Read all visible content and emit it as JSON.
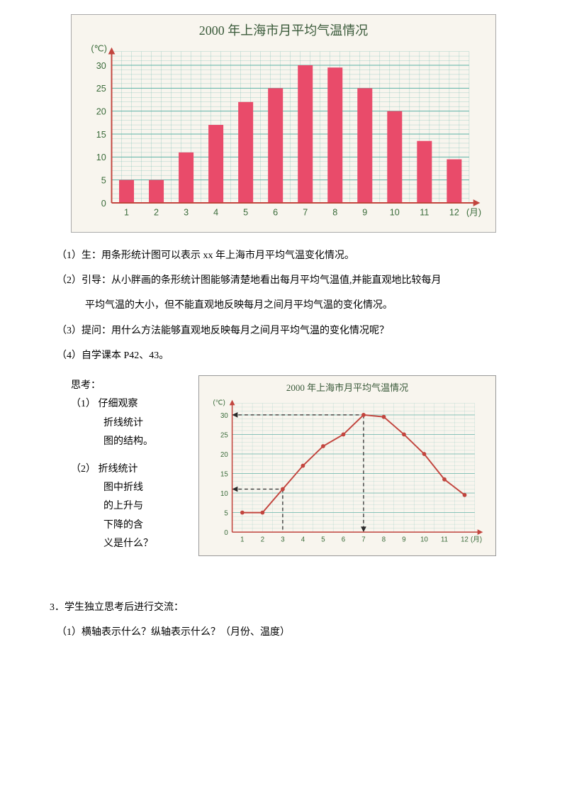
{
  "barChart": {
    "type": "bar",
    "title": "2000 年上海市月平均气温情况",
    "x_unit": "(月)",
    "y_unit": "(℃)",
    "categories": [
      "1",
      "2",
      "3",
      "4",
      "5",
      "6",
      "7",
      "8",
      "9",
      "10",
      "11",
      "12"
    ],
    "values": [
      5,
      5,
      11,
      17,
      22,
      25,
      30,
      29.5,
      25,
      20,
      13.5,
      9.5
    ],
    "ylim": [
      0,
      33
    ],
    "yticks": [
      0,
      5,
      10,
      15,
      20,
      25,
      30
    ],
    "grid_step": 5,
    "bar_color": "#e94b6a",
    "grid_color": "#5db3a6",
    "axis_color": "#c2453e",
    "tick_label_color": "#3a6b3a",
    "bg_color": "#f8f5ee",
    "title_fontsize": 18,
    "tick_fontsize": 13
  },
  "texts": {
    "p1": "（1）生：用条形统计图可以表示 xx 年上海市月平均气温变化情况。",
    "p2a": "（2）引导：从小胖画的条形统计图能够清楚地看出每月平均气温值,并能直观地比较每月",
    "p2b": "平均气温的大小，但不能直观地反映每月之间月平均气温的变化情况。",
    "p3": "（3）提问：用什么方法能够直观地反映每月之间月平均气温的变化情况呢？",
    "p4": "（4）自学课本 P42、43。",
    "think": "思考：",
    "t1a": "（1） 仔细观察",
    "t1b": "折线统计",
    "t1c": "图的结构。",
    "t2a": "（2） 折线统计",
    "t2b": "图中折线",
    "t2c": "的上升与",
    "t2d": "下降的含",
    "t2e": "义是什么？",
    "sec3": "3．学生独立思考后进行交流：",
    "q1": "（1）横轴表示什么？纵轴表示什么？（月份、温度）"
  },
  "lineChart": {
    "type": "line",
    "title": "2000 年上海市月平均气温情况",
    "x_unit": "(月)",
    "y_unit": "(℃)",
    "categories": [
      "1",
      "2",
      "3",
      "4",
      "5",
      "6",
      "7",
      "8",
      "9",
      "10",
      "11",
      "12"
    ],
    "values": [
      5,
      5,
      11,
      17,
      22,
      25,
      30,
      29.5,
      25,
      20,
      13.5,
      9.5
    ],
    "ylim": [
      0,
      33
    ],
    "yticks": [
      0,
      5,
      10,
      15,
      20,
      25,
      30
    ],
    "line_color": "#c2453e",
    "marker_color": "#c2453e",
    "grid_color": "#7bbdb3",
    "axis_color": "#c2453e",
    "tick_label_color": "#3a6b3a",
    "bg_color": "#f8f5ee",
    "ref_vline_x": 7,
    "ref_hline_from_x": 3,
    "ref_hline_y": 11,
    "dash_color": "#2a2a2a"
  }
}
